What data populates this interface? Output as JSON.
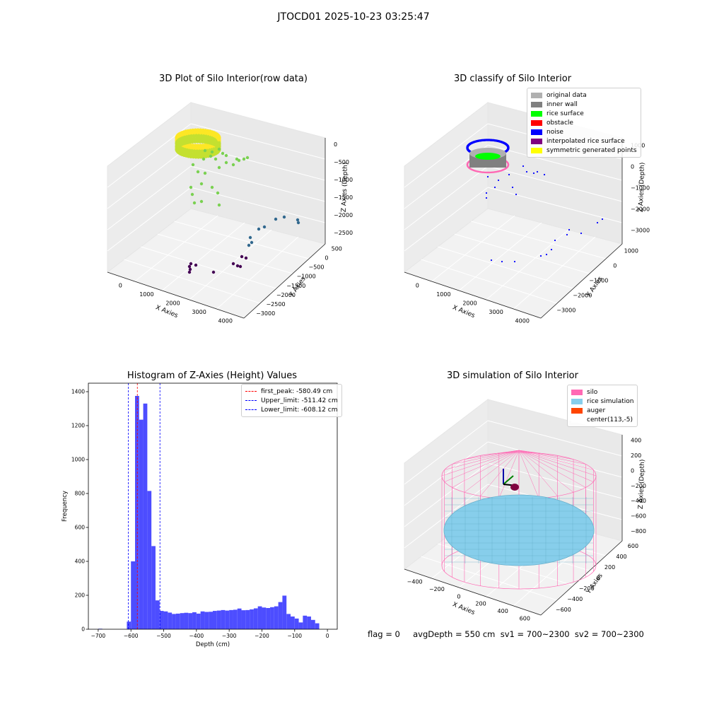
{
  "suptitle": "JTOCD01 2025-10-23 03:25:47",
  "footer": "flag = 0     avgDepth = 550 cm  sv1 = 700~2300  sv2 = 700~2300",
  "chart_data": [
    {
      "type": "scatter",
      "title": "3D Plot of Silo Interior(row data)",
      "xlabel": "X Axies",
      "ylabel": "Y Axies",
      "zlabel": "Z Axies (Depth)",
      "x_ticks": [
        "0",
        "1000",
        "2000",
        "3000",
        "4000"
      ],
      "y_ticks": [
        "500",
        "0",
        "−500",
        "−1000",
        "−1500",
        "−2000",
        "−2500",
        "−3000"
      ],
      "z_ticks": [
        "0",
        "−500",
        "−1000",
        "−1500",
        "−2000",
        "−2500"
      ],
      "colormap": [
        "#440154",
        "#31688e",
        "#35b779",
        "#fde725"
      ]
    },
    {
      "type": "scatter",
      "title": "3D classify of Silo Interior",
      "xlabel": "X Axies",
      "ylabel": "Y Axies",
      "zlabel": "Z Axies (Depth)",
      "x_ticks": [
        "0",
        "1000",
        "2000",
        "3000",
        "4000"
      ],
      "y_ticks": [
        "1000",
        "0",
        "−1000",
        "−2000",
        "−3000"
      ],
      "z_ticks": [
        "1000",
        "0",
        "−1000",
        "−2000",
        "−3000"
      ],
      "legend": [
        {
          "label": "original data",
          "color": "#b0b0b0"
        },
        {
          "label": "inner wall",
          "color": "#808080"
        },
        {
          "label": "rice surface",
          "color": "#00ff00"
        },
        {
          "label": "obstacle",
          "color": "#ff0000"
        },
        {
          "label": "noise",
          "color": "#0000ff"
        },
        {
          "label": "interpolated rice surface",
          "color": "#800080"
        },
        {
          "label": "symmetric generated points",
          "color": "#ffff00"
        }
      ]
    },
    {
      "type": "bar",
      "title": "Histogram of Z-Axies (Height) Values",
      "xlabel": "Depth (cm)",
      "ylabel": "Frequency",
      "xlim": [
        -730,
        30
      ],
      "ylim": [
        0,
        1450
      ],
      "x_ticks": [
        -700,
        -600,
        -500,
        -400,
        -300,
        -200,
        -100,
        0
      ],
      "y_ticks": [
        0,
        200,
        400,
        600,
        800,
        1000,
        1200,
        1400
      ],
      "bar_color": "#4d4dff",
      "bin_width": 12.5,
      "bins": [
        [
          -700,
          3
        ],
        [
          -612.5,
          45
        ],
        [
          -600,
          400
        ],
        [
          -587.5,
          1375
        ],
        [
          -575,
          1235
        ],
        [
          -562.5,
          1330
        ],
        [
          -550,
          815
        ],
        [
          -537.5,
          490
        ],
        [
          -525,
          170
        ],
        [
          -512.5,
          108
        ],
        [
          -500,
          105
        ],
        [
          -487.5,
          98
        ],
        [
          -475,
          90
        ],
        [
          -462.5,
          92
        ],
        [
          -450,
          95
        ],
        [
          -437.5,
          97
        ],
        [
          -425,
          95
        ],
        [
          -412.5,
          100
        ],
        [
          -400,
          92
        ],
        [
          -387.5,
          105
        ],
        [
          -375,
          102
        ],
        [
          -362.5,
          103
        ],
        [
          -350,
          108
        ],
        [
          -337.5,
          110
        ],
        [
          -325,
          113
        ],
        [
          -312.5,
          110
        ],
        [
          -300,
          113
        ],
        [
          -287.5,
          115
        ],
        [
          -275,
          122
        ],
        [
          -262.5,
          112
        ],
        [
          -250,
          113
        ],
        [
          -237.5,
          117
        ],
        [
          -225,
          123
        ],
        [
          -212.5,
          135
        ],
        [
          -200,
          128
        ],
        [
          -187.5,
          125
        ],
        [
          -175,
          130
        ],
        [
          -162.5,
          135
        ],
        [
          -150,
          160
        ],
        [
          -137.5,
          198
        ],
        [
          -125,
          90
        ],
        [
          -112.5,
          75
        ],
        [
          -100,
          63
        ],
        [
          -87.5,
          40
        ],
        [
          -75,
          80
        ],
        [
          -62.5,
          75
        ],
        [
          -50,
          55
        ],
        [
          -37.5,
          35
        ]
      ],
      "vlines": [
        {
          "label": "first_peak: -580.49 cm",
          "x": -580.49,
          "color": "#ff0000"
        },
        {
          "label": "Upper_limit: -511.42 cm",
          "x": -511.42,
          "color": "#0000ff"
        },
        {
          "label": "Lower_limit: -608.12 cm",
          "x": -608.12,
          "color": "#0000ff"
        }
      ]
    },
    {
      "type": "scatter",
      "title": "3D simulation of Silo Interior",
      "xlabel": "X Axies",
      "ylabel": "Y Axies",
      "zlabel": "Z Axies (Depth)",
      "x_ticks": [
        "−400",
        "−200",
        "0",
        "200",
        "400",
        "600"
      ],
      "y_ticks": [
        "600",
        "400",
        "200",
        "0",
        "−200",
        "−400",
        "−600"
      ],
      "z_ticks": [
        "400",
        "200",
        "0",
        "−200",
        "−400",
        "−600",
        "−800"
      ],
      "legend": [
        {
          "label": "silo",
          "color": "#ff69b4"
        },
        {
          "label": "rice simulation",
          "color": "#87ceeb"
        },
        {
          "label": "auger",
          "color": "#ff4500"
        },
        {
          "label": "center(113,-5)",
          "color": "#ffffff"
        }
      ]
    }
  ]
}
